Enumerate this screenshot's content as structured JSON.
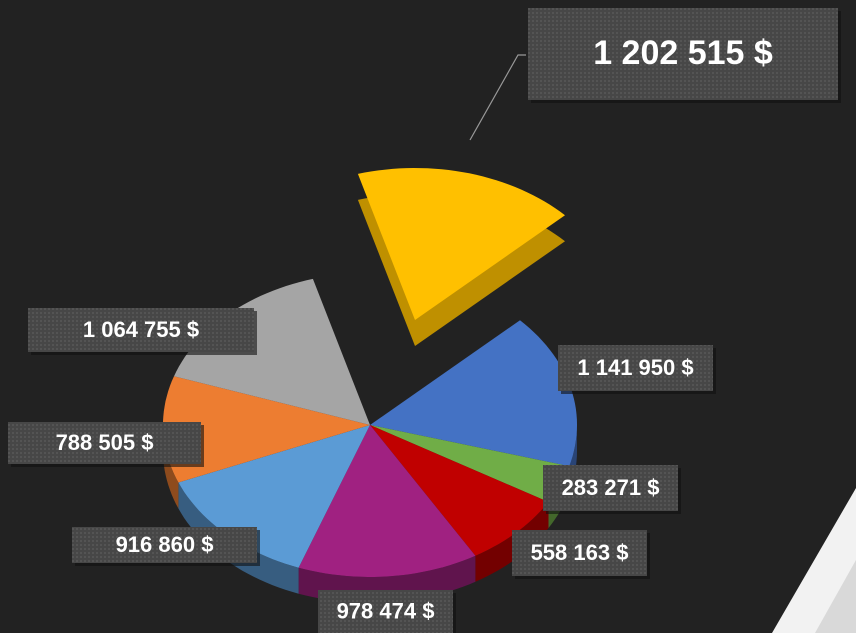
{
  "chart_data": {
    "type": "pie3d",
    "values": [
      1202515,
      1141950,
      283271,
      558163,
      978474,
      916860,
      788505,
      1064755
    ],
    "value_labels": [
      "1 202 515 $",
      "1 141 950 $",
      "283 271 $",
      "558 163 $",
      "978 474 $",
      "916 860 $",
      "788 505 $",
      "1 064 755 $"
    ],
    "colors": [
      "#ffc000",
      "#4472c4",
      "#70ad47",
      "#c00000",
      "#a02181",
      "#5b9bd5",
      "#ed7d31",
      "#a5a5a5"
    ]
  }
}
